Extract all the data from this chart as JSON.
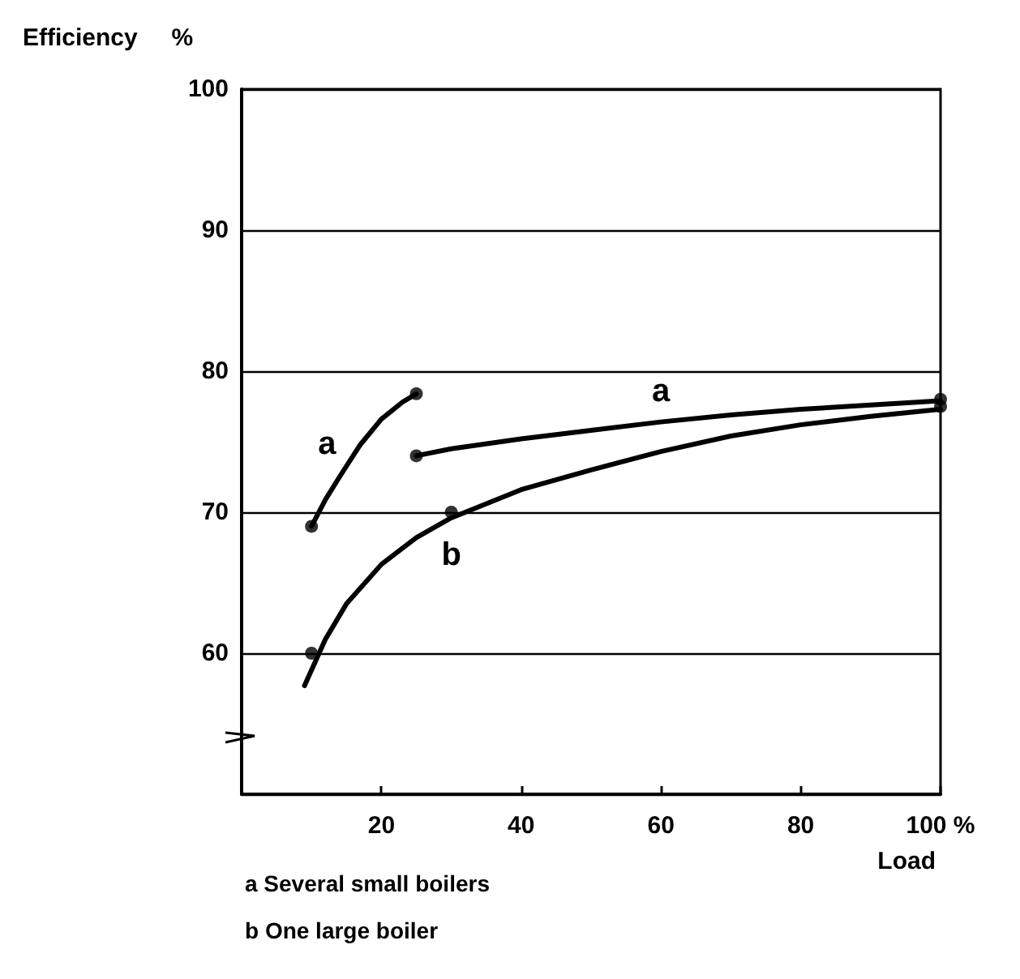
{
  "chart_data": {
    "type": "line",
    "xlabel": "Load",
    "ylabel": "Efficiency     %",
    "annotations": [
      "a Several small boilers",
      "b One large boiler"
    ],
    "xlim": [
      0,
      100
    ],
    "xticks": [
      20,
      40,
      60,
      80,
      {
        "value": 100,
        "label": "100 %"
      }
    ],
    "ylim": [
      50,
      100
    ],
    "yticks": [
      60,
      70,
      80,
      90,
      100
    ],
    "grid": "y",
    "legend": false,
    "marker": "none",
    "line_style": "solid",
    "series": [
      {
        "name": "a",
        "color": "#000000",
        "x": [
          10,
          12,
          14,
          17,
          20,
          23,
          25
        ],
        "values": [
          69,
          70.9,
          72.5,
          74.8,
          76.6,
          77.8,
          78.4
        ]
      },
      {
        "name": "a",
        "color": "#000000",
        "x": [
          25,
          30,
          40,
          50,
          60,
          70,
          80,
          90,
          100
        ],
        "values": [
          74,
          74.5,
          75.2,
          75.8,
          76.4,
          76.9,
          77.3,
          77.6,
          77.9
        ]
      },
      {
        "name": "b",
        "color": "#000000",
        "x": [
          9,
          12,
          15,
          20,
          25,
          30,
          40,
          50,
          60,
          70,
          80,
          90,
          100
        ],
        "values": [
          57.7,
          61,
          63.5,
          66.3,
          68.2,
          69.6,
          71.6,
          73,
          74.3,
          75.4,
          76.2,
          76.8,
          77.3
        ]
      },
      {
        "type": "scatter",
        "marker": "circle",
        "color": "#000000",
        "x": [
          10,
          25,
          25,
          100,
          10,
          30,
          100
        ],
        "values": [
          69,
          78.4,
          74,
          78,
          60,
          70,
          77.5
        ]
      }
    ]
  }
}
